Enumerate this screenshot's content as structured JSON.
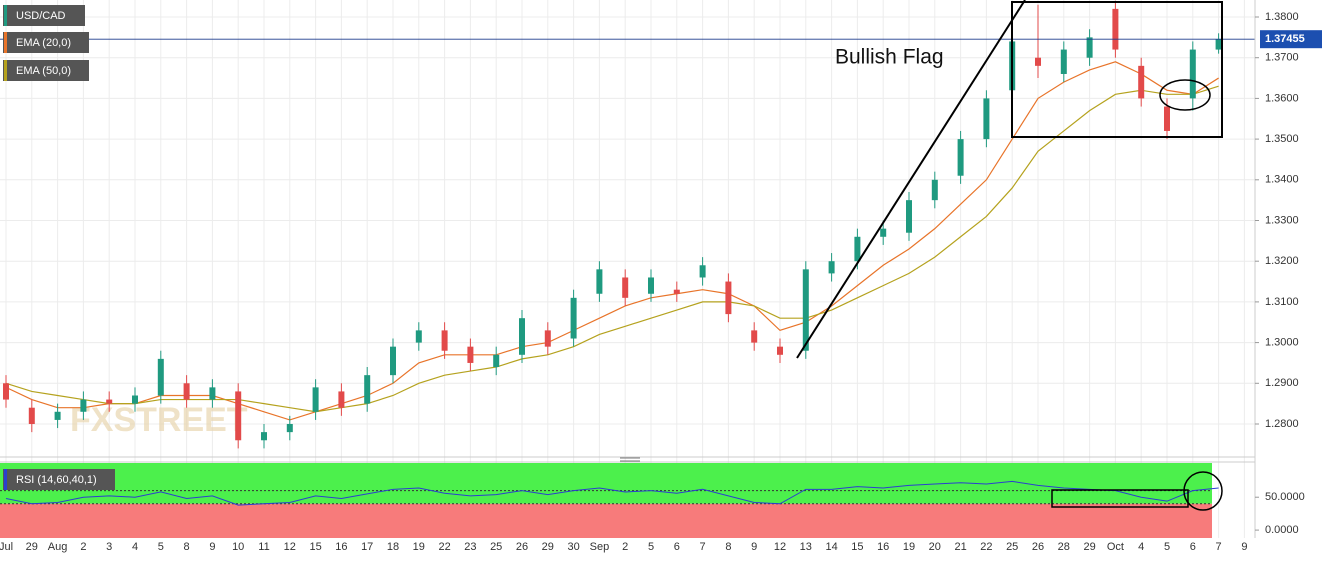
{
  "chart_data": [
    {
      "type": "candlestick",
      "title": "USD/CAD",
      "categories": [
        "Jul",
        "29",
        "Aug",
        "2",
        "3",
        "4",
        "5",
        "8",
        "9",
        "10",
        "11",
        "12",
        "15",
        "16",
        "17",
        "18",
        "19",
        "22",
        "23",
        "25",
        "26",
        "29",
        "30",
        "Sep",
        "2",
        "5",
        "6",
        "7",
        "8",
        "9",
        "12",
        "13",
        "14",
        "15",
        "16",
        "19",
        "20",
        "21",
        "22",
        "25",
        "26",
        "28",
        "29",
        "Oct",
        "4",
        "5",
        "6",
        "7",
        "9"
      ],
      "open": [
        1.29,
        1.284,
        1.281,
        1.283,
        1.286,
        1.285,
        1.287,
        1.29,
        1.286,
        1.288,
        1.276,
        1.278,
        1.283,
        1.288,
        1.285,
        1.292,
        1.3,
        1.303,
        1.299,
        1.294,
        1.297,
        1.303,
        1.301,
        1.312,
        1.316,
        1.312,
        1.313,
        1.316,
        1.315,
        1.303,
        1.299,
        1.298,
        1.317,
        1.32,
        1.326,
        1.327,
        1.335,
        1.341,
        1.35,
        1.362,
        1.37,
        1.366,
        1.37,
        1.382,
        1.368,
        1.358,
        1.36,
        1.372,
        null
      ],
      "high": [
        1.292,
        1.286,
        1.285,
        1.288,
        1.288,
        1.289,
        1.298,
        1.292,
        1.291,
        1.29,
        1.28,
        1.282,
        1.291,
        1.29,
        1.294,
        1.301,
        1.305,
        1.305,
        1.301,
        1.299,
        1.308,
        1.305,
        1.313,
        1.32,
        1.318,
        1.318,
        1.315,
        1.321,
        1.317,
        1.305,
        1.301,
        1.32,
        1.322,
        1.328,
        1.33,
        1.337,
        1.342,
        1.352,
        1.362,
        1.376,
        1.383,
        1.374,
        1.377,
        1.384,
        1.37,
        1.36,
        1.374,
        1.376,
        null
      ],
      "low": [
        1.284,
        1.278,
        1.279,
        1.281,
        1.283,
        1.283,
        1.285,
        1.284,
        1.284,
        1.274,
        1.274,
        1.276,
        1.281,
        1.282,
        1.283,
        1.29,
        1.298,
        1.296,
        1.293,
        1.292,
        1.295,
        1.297,
        1.299,
        1.31,
        1.309,
        1.31,
        1.31,
        1.314,
        1.305,
        1.298,
        1.295,
        1.296,
        1.315,
        1.318,
        1.324,
        1.325,
        1.333,
        1.339,
        1.348,
        1.36,
        1.365,
        1.364,
        1.368,
        1.37,
        1.358,
        1.35,
        1.357,
        1.371,
        null
      ],
      "close": [
        1.286,
        1.28,
        1.283,
        1.286,
        1.285,
        1.287,
        1.296,
        1.286,
        1.289,
        1.276,
        1.278,
        1.28,
        1.289,
        1.284,
        1.292,
        1.299,
        1.303,
        1.298,
        1.295,
        1.297,
        1.306,
        1.299,
        1.311,
        1.318,
        1.311,
        1.316,
        1.312,
        1.319,
        1.307,
        1.3,
        1.297,
        1.318,
        1.32,
        1.326,
        1.328,
        1.335,
        1.34,
        1.35,
        1.36,
        1.374,
        1.368,
        1.372,
        1.375,
        1.372,
        1.36,
        1.352,
        1.372,
        1.3745,
        null
      ],
      "up_color": "#1f9a80",
      "down_color": "#e24a4a",
      "series": [
        {
          "name": "EMA (20,0)",
          "color": "#e8742a",
          "values": [
            1.289,
            1.286,
            1.284,
            1.284,
            1.285,
            1.285,
            1.287,
            1.287,
            1.287,
            1.285,
            1.283,
            1.281,
            1.283,
            1.285,
            1.287,
            1.29,
            1.295,
            1.297,
            1.297,
            1.297,
            1.299,
            1.3,
            1.303,
            1.306,
            1.309,
            1.311,
            1.312,
            1.313,
            1.312,
            1.309,
            1.303,
            1.305,
            1.309,
            1.314,
            1.319,
            1.323,
            1.328,
            1.334,
            1.34,
            1.35,
            1.36,
            1.364,
            1.367,
            1.369,
            1.366,
            1.362,
            1.361,
            1.365,
            null
          ]
        },
        {
          "name": "EMA (50,0)",
          "color": "#b5a21e",
          "values": [
            1.29,
            1.288,
            1.287,
            1.286,
            1.285,
            1.285,
            1.286,
            1.286,
            1.286,
            1.286,
            1.285,
            1.284,
            1.283,
            1.284,
            1.285,
            1.287,
            1.29,
            1.292,
            1.293,
            1.294,
            1.296,
            1.297,
            1.299,
            1.302,
            1.304,
            1.306,
            1.308,
            1.31,
            1.31,
            1.309,
            1.306,
            1.306,
            1.308,
            1.311,
            1.314,
            1.317,
            1.321,
            1.326,
            1.331,
            1.338,
            1.347,
            1.352,
            1.357,
            1.361,
            1.362,
            1.361,
            1.361,
            1.363,
            null
          ]
        }
      ],
      "ylim": [
        1.27238,
        1.38418
      ],
      "yticks": [
        {
          "value": 1.28,
          "label": "1.2800"
        },
        {
          "value": 1.29,
          "label": "1.2900"
        },
        {
          "value": 1.3,
          "label": "1.3000"
        },
        {
          "value": 1.31,
          "label": "1.3100"
        },
        {
          "value": 1.32,
          "label": "1.3200"
        },
        {
          "value": 1.33,
          "label": "1.3300"
        },
        {
          "value": 1.34,
          "label": "1.3400"
        },
        {
          "value": 1.35,
          "label": "1.3500"
        },
        {
          "value": 1.36,
          "label": "1.3600"
        },
        {
          "value": 1.37,
          "label": "1.3700"
        },
        {
          "value": 1.38,
          "label": "1.3800"
        }
      ],
      "current_price": {
        "value": 1.37455,
        "label": "1.37455"
      },
      "annotation": "Bullish Flag",
      "watermark": "FXSTREET",
      "grid": true
    },
    {
      "type": "line",
      "title": "RSI (14,60,40,1)",
      "series": [
        {
          "name": "RSI (14,60,40,1)",
          "color": "#2a3fd0",
          "values": [
            48,
            40,
            42,
            50,
            52,
            50,
            58,
            48,
            52,
            38,
            40,
            42,
            52,
            48,
            55,
            62,
            64,
            56,
            52,
            54,
            60,
            54,
            60,
            64,
            58,
            60,
            56,
            62,
            52,
            42,
            40,
            62,
            62,
            66,
            64,
            68,
            70,
            72,
            70,
            74,
            68,
            64,
            62,
            60,
            50,
            44,
            60,
            64,
            null
          ]
        }
      ],
      "levels": [
        60,
        40
      ],
      "ylim": [
        -12,
        102
      ],
      "yticks": [
        {
          "value": 0,
          "label": "0.0000"
        },
        {
          "value": 50,
          "label": "50.0000"
        }
      ]
    }
  ]
}
